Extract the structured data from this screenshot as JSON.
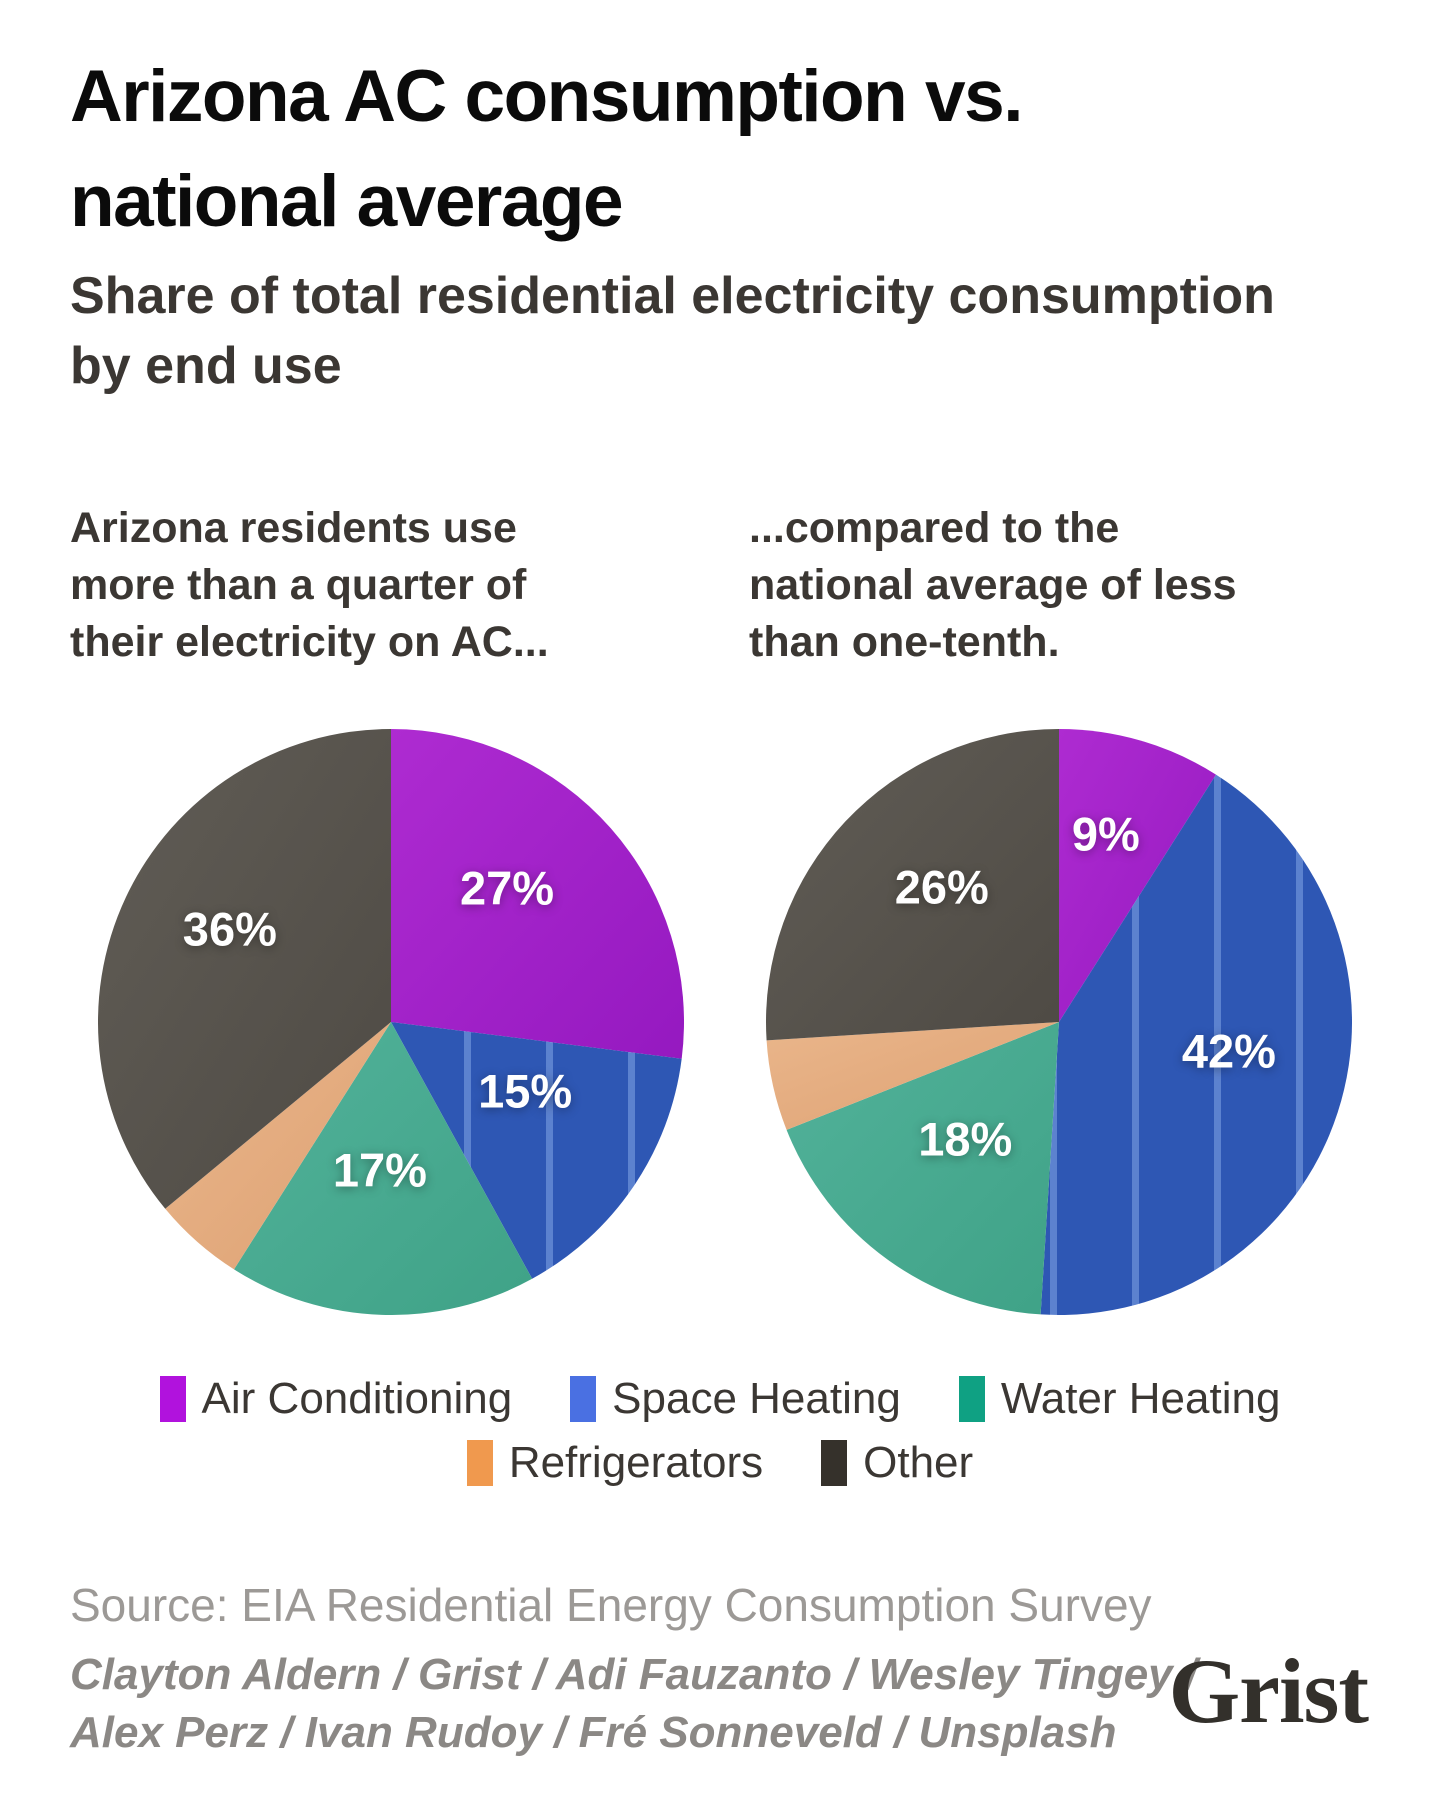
{
  "header": {
    "title": "Arizona AC consumption vs. national average",
    "subtitle": "Share of total residential electricity consumption by end use"
  },
  "captions": {
    "left": "Arizona residents use more than a quarter of their electricity on AC...",
    "right": "...compared to the national average of less than one-tenth."
  },
  "chart_data": {
    "type": "pie",
    "title": "Arizona AC consumption vs. national average",
    "subtitle": "Share of total residential electricity consumption by end use",
    "units": "percent of total residential electricity consumption",
    "categories": [
      "Air Conditioning",
      "Space Heating",
      "Water Heating",
      "Refrigerators",
      "Other"
    ],
    "legend_position": "bottom",
    "legend_rows": [
      [
        "Air Conditioning",
        "Space Heating",
        "Water Heating"
      ],
      [
        "Refrigerators",
        "Other"
      ]
    ],
    "legend_colors": [
      "#b112dd",
      "#4a70e2",
      "#0fa183",
      "#f0994e",
      "#35312b"
    ],
    "slice_fills": [
      {
        "kind": "gradient",
        "from": "#ae2bd1",
        "to": "#9519c0"
      },
      {
        "kind": "stripes",
        "base": "#2e57b4",
        "stripe": "#6b90d8"
      },
      {
        "kind": "gradient",
        "from": "#52b29a",
        "to": "#3fa287"
      },
      {
        "kind": "gradient",
        "from": "#eab68b",
        "to": "#dda173"
      },
      {
        "kind": "gradient",
        "from": "#615d56",
        "to": "#4e4a44"
      }
    ],
    "charts": [
      {
        "name": "Arizona",
        "caption": "Arizona residents use more than a quarter of their electricity on AC...",
        "values": [
          27,
          15,
          17,
          5,
          36
        ],
        "value_labels": [
          "27%",
          "15%",
          "17%",
          "",
          "36%"
        ]
      },
      {
        "name": "National average",
        "caption": "...compared to the national average of less than one-tenth.",
        "values": [
          9,
          42,
          18,
          5,
          26
        ],
        "value_labels": [
          "9%",
          "42%",
          "18%",
          "",
          "26%"
        ]
      }
    ]
  },
  "footer": {
    "source": "Source: EIA Residential Energy Consumption Survey",
    "credits": [
      "Clayton Aldern / Grist / Adi Fauzanto / Wesley Tingey /",
      "Alex Perz / Ivan Rudoy / Fré Sonneveld / Unsplash"
    ],
    "logo": "Grist"
  }
}
